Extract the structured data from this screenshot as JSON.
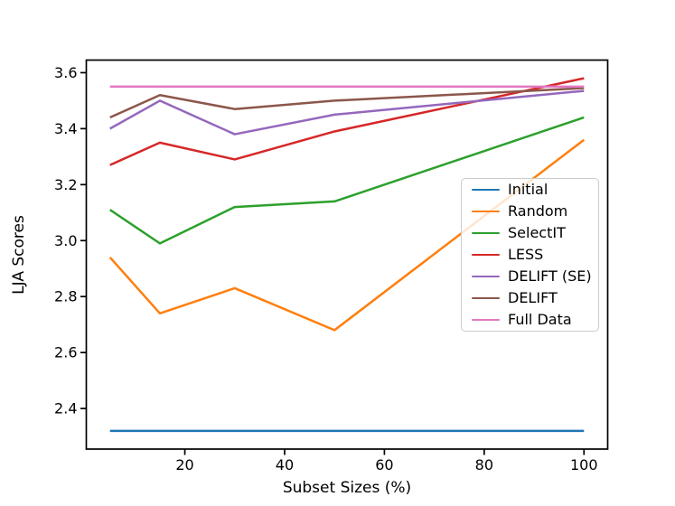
{
  "figure": {
    "background": "#ffffff",
    "spine_color": "#000000",
    "text_color": "#000000"
  },
  "chart_data": {
    "type": "line",
    "title": "",
    "xlabel": "Subset Sizes (%)",
    "ylabel": "LJA Scores",
    "x": [
      5,
      15,
      30,
      50,
      100
    ],
    "xlim": [
      0.25,
      104.75
    ],
    "ylim": [
      2.255,
      3.645
    ],
    "xticks": [
      20,
      40,
      60,
      80,
      100
    ],
    "yticks": [
      2.4,
      2.6,
      2.8,
      3.0,
      3.2,
      3.4,
      3.6
    ],
    "grid": false,
    "legend": {
      "position": "center-right",
      "border_color": "#cccccc",
      "background": "rgba(255,255,255,0.8)"
    },
    "series": [
      {
        "name": "Initial",
        "color": "#1f77b4",
        "values": [
          2.32,
          2.32,
          2.32,
          2.32,
          2.32
        ]
      },
      {
        "name": "Random",
        "color": "#ff7f0e",
        "values": [
          2.94,
          2.74,
          2.83,
          2.68,
          3.36
        ]
      },
      {
        "name": "SelectIT",
        "color": "#2ca02c",
        "values": [
          3.11,
          2.99,
          3.12,
          3.14,
          3.44
        ]
      },
      {
        "name": "LESS",
        "color": "#d62728",
        "values": [
          3.27,
          3.35,
          3.29,
          3.39,
          3.58
        ]
      },
      {
        "name": "DELIFT (SE)",
        "color": "#9467bd",
        "values": [
          3.4,
          3.5,
          3.38,
          3.45,
          3.535
        ]
      },
      {
        "name": "DELIFT",
        "color": "#8c564b",
        "values": [
          3.44,
          3.52,
          3.47,
          3.5,
          3.545
        ]
      },
      {
        "name": "Full Data",
        "color": "#e377c2",
        "values": [
          3.55,
          3.55,
          3.55,
          3.55,
          3.55
        ]
      }
    ]
  }
}
